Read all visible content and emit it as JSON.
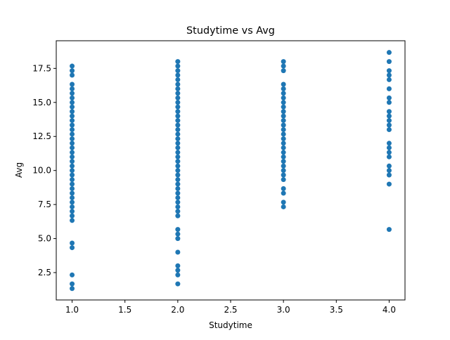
{
  "chart_data": {
    "type": "scatter",
    "title": "Studytime vs Avg",
    "xlabel": "Studytime",
    "ylabel": "Avg",
    "xlim": [
      0.85,
      4.15
    ],
    "ylim": [
      0.49,
      19.53
    ],
    "xticks": [
      1.0,
      1.5,
      2.0,
      2.5,
      3.0,
      3.5,
      4.0
    ],
    "xtick_labels": [
      "1.0",
      "1.5",
      "2.0",
      "2.5",
      "3.0",
      "3.5",
      "4.0"
    ],
    "yticks": [
      2.5,
      5.0,
      7.5,
      10.0,
      12.5,
      15.0,
      17.5
    ],
    "ytick_labels": [
      "2.5",
      "5.0",
      "7.5",
      "10.0",
      "12.5",
      "15.0",
      "17.5"
    ],
    "grid": false,
    "legend": "none",
    "series": [
      {
        "color": "#1f77b4",
        "points": [
          {
            "x": 1,
            "y": 17.67
          },
          {
            "x": 1,
            "y": 17.33
          },
          {
            "x": 1,
            "y": 17.0
          },
          {
            "x": 1,
            "y": 16.33
          },
          {
            "x": 1,
            "y": 16.0
          },
          {
            "x": 1,
            "y": 15.67
          },
          {
            "x": 1,
            "y": 15.33
          },
          {
            "x": 1,
            "y": 15.0
          },
          {
            "x": 1,
            "y": 14.67
          },
          {
            "x": 1,
            "y": 14.33
          },
          {
            "x": 1,
            "y": 14.0
          },
          {
            "x": 1,
            "y": 13.67
          },
          {
            "x": 1,
            "y": 13.33
          },
          {
            "x": 1,
            "y": 13.0
          },
          {
            "x": 1,
            "y": 12.67
          },
          {
            "x": 1,
            "y": 12.33
          },
          {
            "x": 1,
            "y": 12.0
          },
          {
            "x": 1,
            "y": 11.67
          },
          {
            "x": 1,
            "y": 11.33
          },
          {
            "x": 1,
            "y": 11.0
          },
          {
            "x": 1,
            "y": 10.67
          },
          {
            "x": 1,
            "y": 10.33
          },
          {
            "x": 1,
            "y": 10.0
          },
          {
            "x": 1,
            "y": 9.67
          },
          {
            "x": 1,
            "y": 9.33
          },
          {
            "x": 1,
            "y": 9.0
          },
          {
            "x": 1,
            "y": 8.67
          },
          {
            "x": 1,
            "y": 8.33
          },
          {
            "x": 1,
            "y": 8.0
          },
          {
            "x": 1,
            "y": 7.67
          },
          {
            "x": 1,
            "y": 7.33
          },
          {
            "x": 1,
            "y": 7.0
          },
          {
            "x": 1,
            "y": 6.67
          },
          {
            "x": 1,
            "y": 6.33
          },
          {
            "x": 1,
            "y": 4.67
          },
          {
            "x": 1,
            "y": 4.33
          },
          {
            "x": 1,
            "y": 2.33
          },
          {
            "x": 1,
            "y": 1.67
          },
          {
            "x": 1,
            "y": 1.33
          },
          {
            "x": 2,
            "y": 18.0
          },
          {
            "x": 2,
            "y": 17.67
          },
          {
            "x": 2,
            "y": 17.33
          },
          {
            "x": 2,
            "y": 17.0
          },
          {
            "x": 2,
            "y": 16.67
          },
          {
            "x": 2,
            "y": 16.33
          },
          {
            "x": 2,
            "y": 16.0
          },
          {
            "x": 2,
            "y": 15.67
          },
          {
            "x": 2,
            "y": 15.33
          },
          {
            "x": 2,
            "y": 15.0
          },
          {
            "x": 2,
            "y": 14.67
          },
          {
            "x": 2,
            "y": 14.33
          },
          {
            "x": 2,
            "y": 14.0
          },
          {
            "x": 2,
            "y": 13.67
          },
          {
            "x": 2,
            "y": 13.33
          },
          {
            "x": 2,
            "y": 13.0
          },
          {
            "x": 2,
            "y": 12.67
          },
          {
            "x": 2,
            "y": 12.33
          },
          {
            "x": 2,
            "y": 12.0
          },
          {
            "x": 2,
            "y": 11.67
          },
          {
            "x": 2,
            "y": 11.33
          },
          {
            "x": 2,
            "y": 11.0
          },
          {
            "x": 2,
            "y": 10.67
          },
          {
            "x": 2,
            "y": 10.33
          },
          {
            "x": 2,
            "y": 10.0
          },
          {
            "x": 2,
            "y": 9.67
          },
          {
            "x": 2,
            "y": 9.33
          },
          {
            "x": 2,
            "y": 9.0
          },
          {
            "x": 2,
            "y": 8.67
          },
          {
            "x": 2,
            "y": 8.33
          },
          {
            "x": 2,
            "y": 8.0
          },
          {
            "x": 2,
            "y": 7.67
          },
          {
            "x": 2,
            "y": 7.33
          },
          {
            "x": 2,
            "y": 7.0
          },
          {
            "x": 2,
            "y": 6.67
          },
          {
            "x": 2,
            "y": 5.67
          },
          {
            "x": 2,
            "y": 5.33
          },
          {
            "x": 2,
            "y": 5.0
          },
          {
            "x": 2,
            "y": 4.0
          },
          {
            "x": 2,
            "y": 3.0
          },
          {
            "x": 2,
            "y": 2.67
          },
          {
            "x": 2,
            "y": 2.33
          },
          {
            "x": 2,
            "y": 1.67
          },
          {
            "x": 3,
            "y": 18.0
          },
          {
            "x": 3,
            "y": 17.67
          },
          {
            "x": 3,
            "y": 17.33
          },
          {
            "x": 3,
            "y": 16.33
          },
          {
            "x": 3,
            "y": 16.0
          },
          {
            "x": 3,
            "y": 15.67
          },
          {
            "x": 3,
            "y": 15.33
          },
          {
            "x": 3,
            "y": 15.0
          },
          {
            "x": 3,
            "y": 14.67
          },
          {
            "x": 3,
            "y": 14.33
          },
          {
            "x": 3,
            "y": 14.0
          },
          {
            "x": 3,
            "y": 13.67
          },
          {
            "x": 3,
            "y": 13.33
          },
          {
            "x": 3,
            "y": 13.0
          },
          {
            "x": 3,
            "y": 12.67
          },
          {
            "x": 3,
            "y": 12.33
          },
          {
            "x": 3,
            "y": 12.0
          },
          {
            "x": 3,
            "y": 11.67
          },
          {
            "x": 3,
            "y": 11.33
          },
          {
            "x": 3,
            "y": 11.0
          },
          {
            "x": 3,
            "y": 10.67
          },
          {
            "x": 3,
            "y": 10.33
          },
          {
            "x": 3,
            "y": 10.0
          },
          {
            "x": 3,
            "y": 9.67
          },
          {
            "x": 3,
            "y": 9.33
          },
          {
            "x": 3,
            "y": 8.67
          },
          {
            "x": 3,
            "y": 8.33
          },
          {
            "x": 3,
            "y": 7.67
          },
          {
            "x": 3,
            "y": 7.33
          },
          {
            "x": 4,
            "y": 18.67
          },
          {
            "x": 4,
            "y": 18.0
          },
          {
            "x": 4,
            "y": 17.33
          },
          {
            "x": 4,
            "y": 17.0
          },
          {
            "x": 4,
            "y": 16.67
          },
          {
            "x": 4,
            "y": 16.0
          },
          {
            "x": 4,
            "y": 15.33
          },
          {
            "x": 4,
            "y": 15.0
          },
          {
            "x": 4,
            "y": 14.33
          },
          {
            "x": 4,
            "y": 14.0
          },
          {
            "x": 4,
            "y": 13.67
          },
          {
            "x": 4,
            "y": 13.33
          },
          {
            "x": 4,
            "y": 13.0
          },
          {
            "x": 4,
            "y": 12.0
          },
          {
            "x": 4,
            "y": 11.67
          },
          {
            "x": 4,
            "y": 11.33
          },
          {
            "x": 4,
            "y": 11.0
          },
          {
            "x": 4,
            "y": 10.33
          },
          {
            "x": 4,
            "y": 10.0
          },
          {
            "x": 4,
            "y": 9.67
          },
          {
            "x": 4,
            "y": 9.0
          },
          {
            "x": 4,
            "y": 5.67
          }
        ]
      }
    ]
  }
}
